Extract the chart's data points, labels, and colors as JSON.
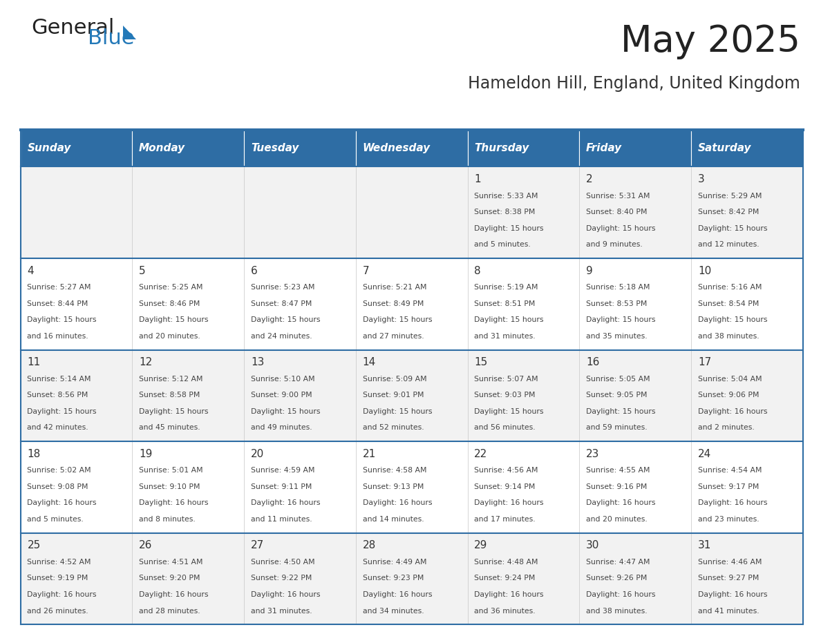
{
  "title": "May 2025",
  "subtitle": "Hameldon Hill, England, United Kingdom",
  "days_of_week": [
    "Sunday",
    "Monday",
    "Tuesday",
    "Wednesday",
    "Thursday",
    "Friday",
    "Saturday"
  ],
  "header_bg": "#2E6DA4",
  "header_text": "#FFFFFF",
  "row_bg_odd": "#F2F2F2",
  "row_bg_even": "#FFFFFF",
  "cell_border": "#2E6DA4",
  "day_num_color": "#333333",
  "info_color": "#444444",
  "title_color": "#222222",
  "subtitle_color": "#333333",
  "logo_general_color": "#222222",
  "logo_blue_color": "#2479B8",
  "calendar_data": [
    [
      null,
      null,
      null,
      null,
      {
        "day": 1,
        "sunrise": "5:33 AM",
        "sunset": "8:38 PM",
        "daylight": "15 hours and 5 minutes."
      },
      {
        "day": 2,
        "sunrise": "5:31 AM",
        "sunset": "8:40 PM",
        "daylight": "15 hours and 9 minutes."
      },
      {
        "day": 3,
        "sunrise": "5:29 AM",
        "sunset": "8:42 PM",
        "daylight": "15 hours and 12 minutes."
      }
    ],
    [
      {
        "day": 4,
        "sunrise": "5:27 AM",
        "sunset": "8:44 PM",
        "daylight": "15 hours and 16 minutes."
      },
      {
        "day": 5,
        "sunrise": "5:25 AM",
        "sunset": "8:46 PM",
        "daylight": "15 hours and 20 minutes."
      },
      {
        "day": 6,
        "sunrise": "5:23 AM",
        "sunset": "8:47 PM",
        "daylight": "15 hours and 24 minutes."
      },
      {
        "day": 7,
        "sunrise": "5:21 AM",
        "sunset": "8:49 PM",
        "daylight": "15 hours and 27 minutes."
      },
      {
        "day": 8,
        "sunrise": "5:19 AM",
        "sunset": "8:51 PM",
        "daylight": "15 hours and 31 minutes."
      },
      {
        "day": 9,
        "sunrise": "5:18 AM",
        "sunset": "8:53 PM",
        "daylight": "15 hours and 35 minutes."
      },
      {
        "day": 10,
        "sunrise": "5:16 AM",
        "sunset": "8:54 PM",
        "daylight": "15 hours and 38 minutes."
      }
    ],
    [
      {
        "day": 11,
        "sunrise": "5:14 AM",
        "sunset": "8:56 PM",
        "daylight": "15 hours and 42 minutes."
      },
      {
        "day": 12,
        "sunrise": "5:12 AM",
        "sunset": "8:58 PM",
        "daylight": "15 hours and 45 minutes."
      },
      {
        "day": 13,
        "sunrise": "5:10 AM",
        "sunset": "9:00 PM",
        "daylight": "15 hours and 49 minutes."
      },
      {
        "day": 14,
        "sunrise": "5:09 AM",
        "sunset": "9:01 PM",
        "daylight": "15 hours and 52 minutes."
      },
      {
        "day": 15,
        "sunrise": "5:07 AM",
        "sunset": "9:03 PM",
        "daylight": "15 hours and 56 minutes."
      },
      {
        "day": 16,
        "sunrise": "5:05 AM",
        "sunset": "9:05 PM",
        "daylight": "15 hours and 59 minutes."
      },
      {
        "day": 17,
        "sunrise": "5:04 AM",
        "sunset": "9:06 PM",
        "daylight": "16 hours and 2 minutes."
      }
    ],
    [
      {
        "day": 18,
        "sunrise": "5:02 AM",
        "sunset": "9:08 PM",
        "daylight": "16 hours and 5 minutes."
      },
      {
        "day": 19,
        "sunrise": "5:01 AM",
        "sunset": "9:10 PM",
        "daylight": "16 hours and 8 minutes."
      },
      {
        "day": 20,
        "sunrise": "4:59 AM",
        "sunset": "9:11 PM",
        "daylight": "16 hours and 11 minutes."
      },
      {
        "day": 21,
        "sunrise": "4:58 AM",
        "sunset": "9:13 PM",
        "daylight": "16 hours and 14 minutes."
      },
      {
        "day": 22,
        "sunrise": "4:56 AM",
        "sunset": "9:14 PM",
        "daylight": "16 hours and 17 minutes."
      },
      {
        "day": 23,
        "sunrise": "4:55 AM",
        "sunset": "9:16 PM",
        "daylight": "16 hours and 20 minutes."
      },
      {
        "day": 24,
        "sunrise": "4:54 AM",
        "sunset": "9:17 PM",
        "daylight": "16 hours and 23 minutes."
      }
    ],
    [
      {
        "day": 25,
        "sunrise": "4:52 AM",
        "sunset": "9:19 PM",
        "daylight": "16 hours and 26 minutes."
      },
      {
        "day": 26,
        "sunrise": "4:51 AM",
        "sunset": "9:20 PM",
        "daylight": "16 hours and 28 minutes."
      },
      {
        "day": 27,
        "sunrise": "4:50 AM",
        "sunset": "9:22 PM",
        "daylight": "16 hours and 31 minutes."
      },
      {
        "day": 28,
        "sunrise": "4:49 AM",
        "sunset": "9:23 PM",
        "daylight": "16 hours and 34 minutes."
      },
      {
        "day": 29,
        "sunrise": "4:48 AM",
        "sunset": "9:24 PM",
        "daylight": "16 hours and 36 minutes."
      },
      {
        "day": 30,
        "sunrise": "4:47 AM",
        "sunset": "9:26 PM",
        "daylight": "16 hours and 38 minutes."
      },
      {
        "day": 31,
        "sunrise": "4:46 AM",
        "sunset": "9:27 PM",
        "daylight": "16 hours and 41 minutes."
      }
    ]
  ]
}
